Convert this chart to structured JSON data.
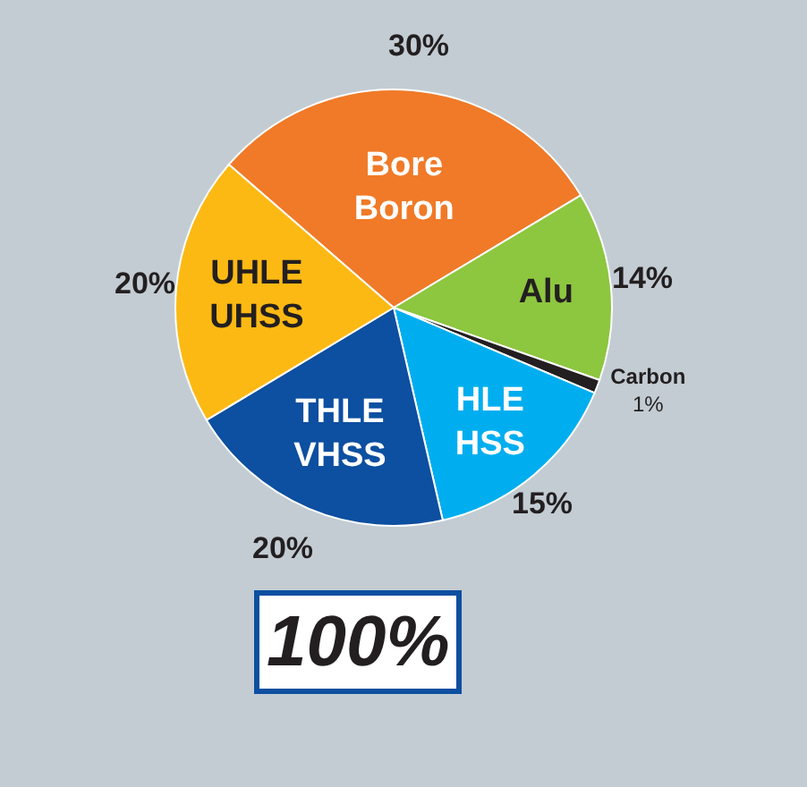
{
  "chart_data": {
    "type": "pie",
    "categories": [
      "Bore\nBoron",
      "Alu",
      "Carbon",
      "HLE\nHSS",
      "THLE\nVHSS",
      "UHLE\nUHSS"
    ],
    "values": [
      30,
      14,
      1,
      15,
      20,
      20
    ],
    "colors": [
      "#f07a28",
      "#8dc63f",
      "#231f20",
      "#00aeef",
      "#0d4fa0",
      "#fdb913"
    ],
    "value_labels": [
      "30%",
      "14%",
      "1%",
      "15%",
      "20%",
      "20%"
    ],
    "annotations": [
      "100%"
    ]
  }
}
